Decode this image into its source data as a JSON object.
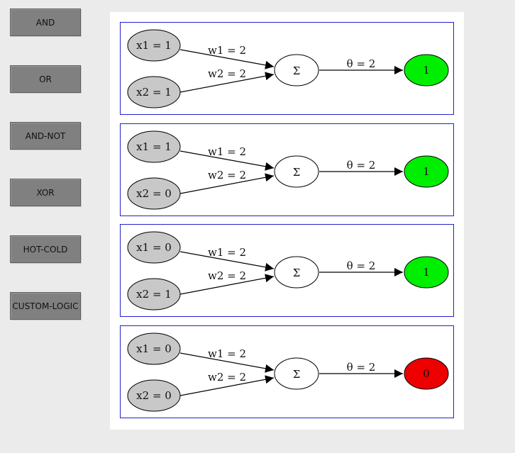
{
  "sidebar": {
    "buttons": [
      {
        "label": "AND"
      },
      {
        "label": "OR"
      },
      {
        "label": "AND-NOT"
      },
      {
        "label": "XOR"
      },
      {
        "label": "HOT-COLD"
      },
      {
        "label": "CUSTOM-LOGIC"
      }
    ]
  },
  "colors": {
    "input_fill": "#c8c8c8",
    "sum_fill": "#ffffff",
    "output_on": "#00ee00",
    "output_off": "#ee0000",
    "panel_border": "#2222cc"
  },
  "diagrams": [
    {
      "x1": "x1 = 1",
      "x2": "x2 = 1",
      "w1": "w1 = 2",
      "w2": "w2 = 2",
      "sum": "Σ",
      "theta": "θ = 2",
      "output": "1",
      "output_state": "on"
    },
    {
      "x1": "x1 = 1",
      "x2": "x2 = 0",
      "w1": "w1 = 2",
      "w2": "w2 = 2",
      "sum": "Σ",
      "theta": "θ = 2",
      "output": "1",
      "output_state": "on"
    },
    {
      "x1": "x1 = 0",
      "x2": "x2 = 1",
      "w1": "w1 = 2",
      "w2": "w2 = 2",
      "sum": "Σ",
      "theta": "θ = 2",
      "output": "1",
      "output_state": "on"
    },
    {
      "x1": "x1 = 0",
      "x2": "x2 = 0",
      "w1": "w1 = 2",
      "w2": "w2 = 2",
      "sum": "Σ",
      "theta": "θ = 2",
      "output": "0",
      "output_state": "off"
    }
  ]
}
